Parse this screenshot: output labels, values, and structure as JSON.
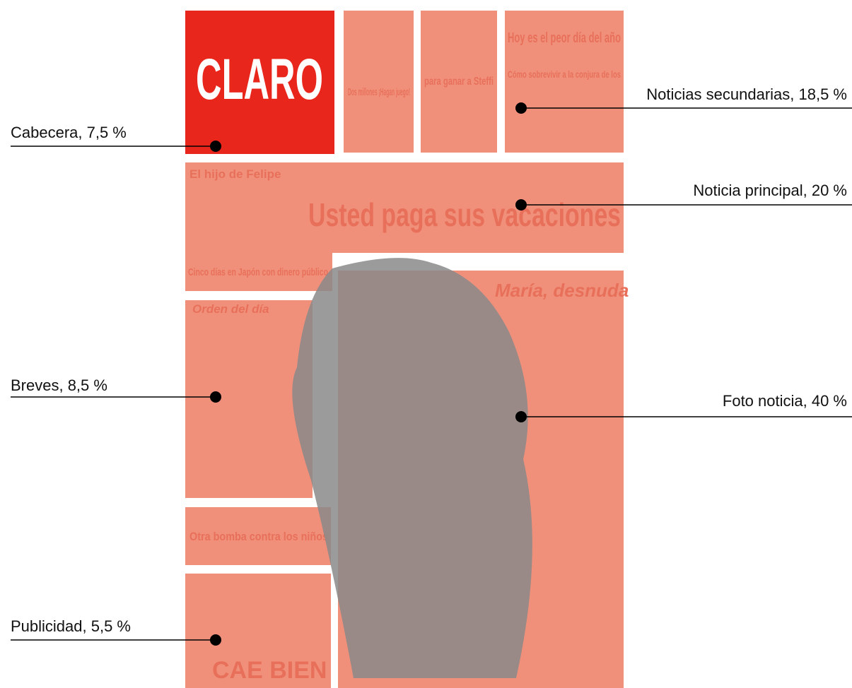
{
  "masthead": "CLARO",
  "blocks": {
    "secondary": [
      "Dos millones ¡Hagan juego!",
      "para ganar a Steffi",
      "Hoy es el peor día del año",
      "Cómo sobrevivir a la conjura de los"
    ],
    "main": [
      "El hijo de Felipe",
      "Usted paga sus vacaciones",
      "Cinco días en Japón con dinero público"
    ],
    "briefs": "Orden del día",
    "eta": "Otra bomba contra los niños",
    "photo": "María, desnuda",
    "ad": "CAE BIEN"
  },
  "annotations": [
    "Cabecera, 7,5 %",
    "Noticias secundarias, 18,5 %",
    "Noticia principal, 20 %",
    "Breves, 8,5 %",
    "Foto noticia, 40 %",
    "Publicidad, 5,5 %"
  ]
}
